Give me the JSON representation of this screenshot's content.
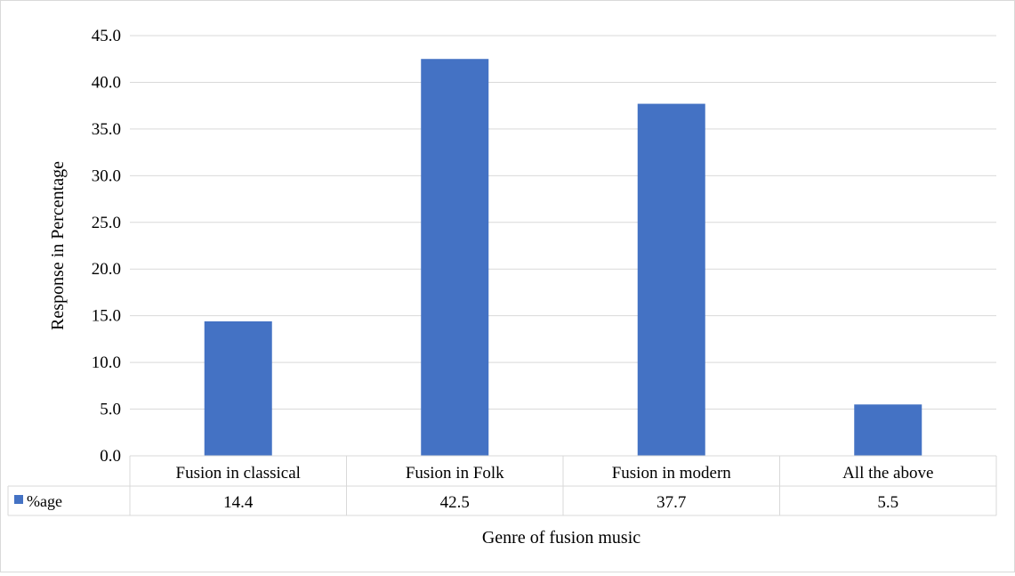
{
  "chart_data": {
    "type": "bar",
    "categories": [
      "Fusion in classical",
      "Fusion in Folk",
      "Fusion in modern",
      "All the above"
    ],
    "series": [
      {
        "name": "%age",
        "values": [
          14.4,
          42.5,
          37.7,
          5.5
        ],
        "color": "#4472C4"
      }
    ],
    "value_labels": [
      "14.4",
      "42.5",
      "37.7",
      "5.5"
    ],
    "xlabel": "Genre of fusion music",
    "ylabel": "Response in Percentage",
    "ylim": [
      0,
      45
    ],
    "yticks": [
      "0.0",
      "5.0",
      "10.0",
      "15.0",
      "20.0",
      "25.0",
      "30.0",
      "35.0",
      "40.0",
      "45.0"
    ],
    "grid": true,
    "data_table": true,
    "gridline_color": "#d9d9d9",
    "bar_color": "#4472C4"
  }
}
